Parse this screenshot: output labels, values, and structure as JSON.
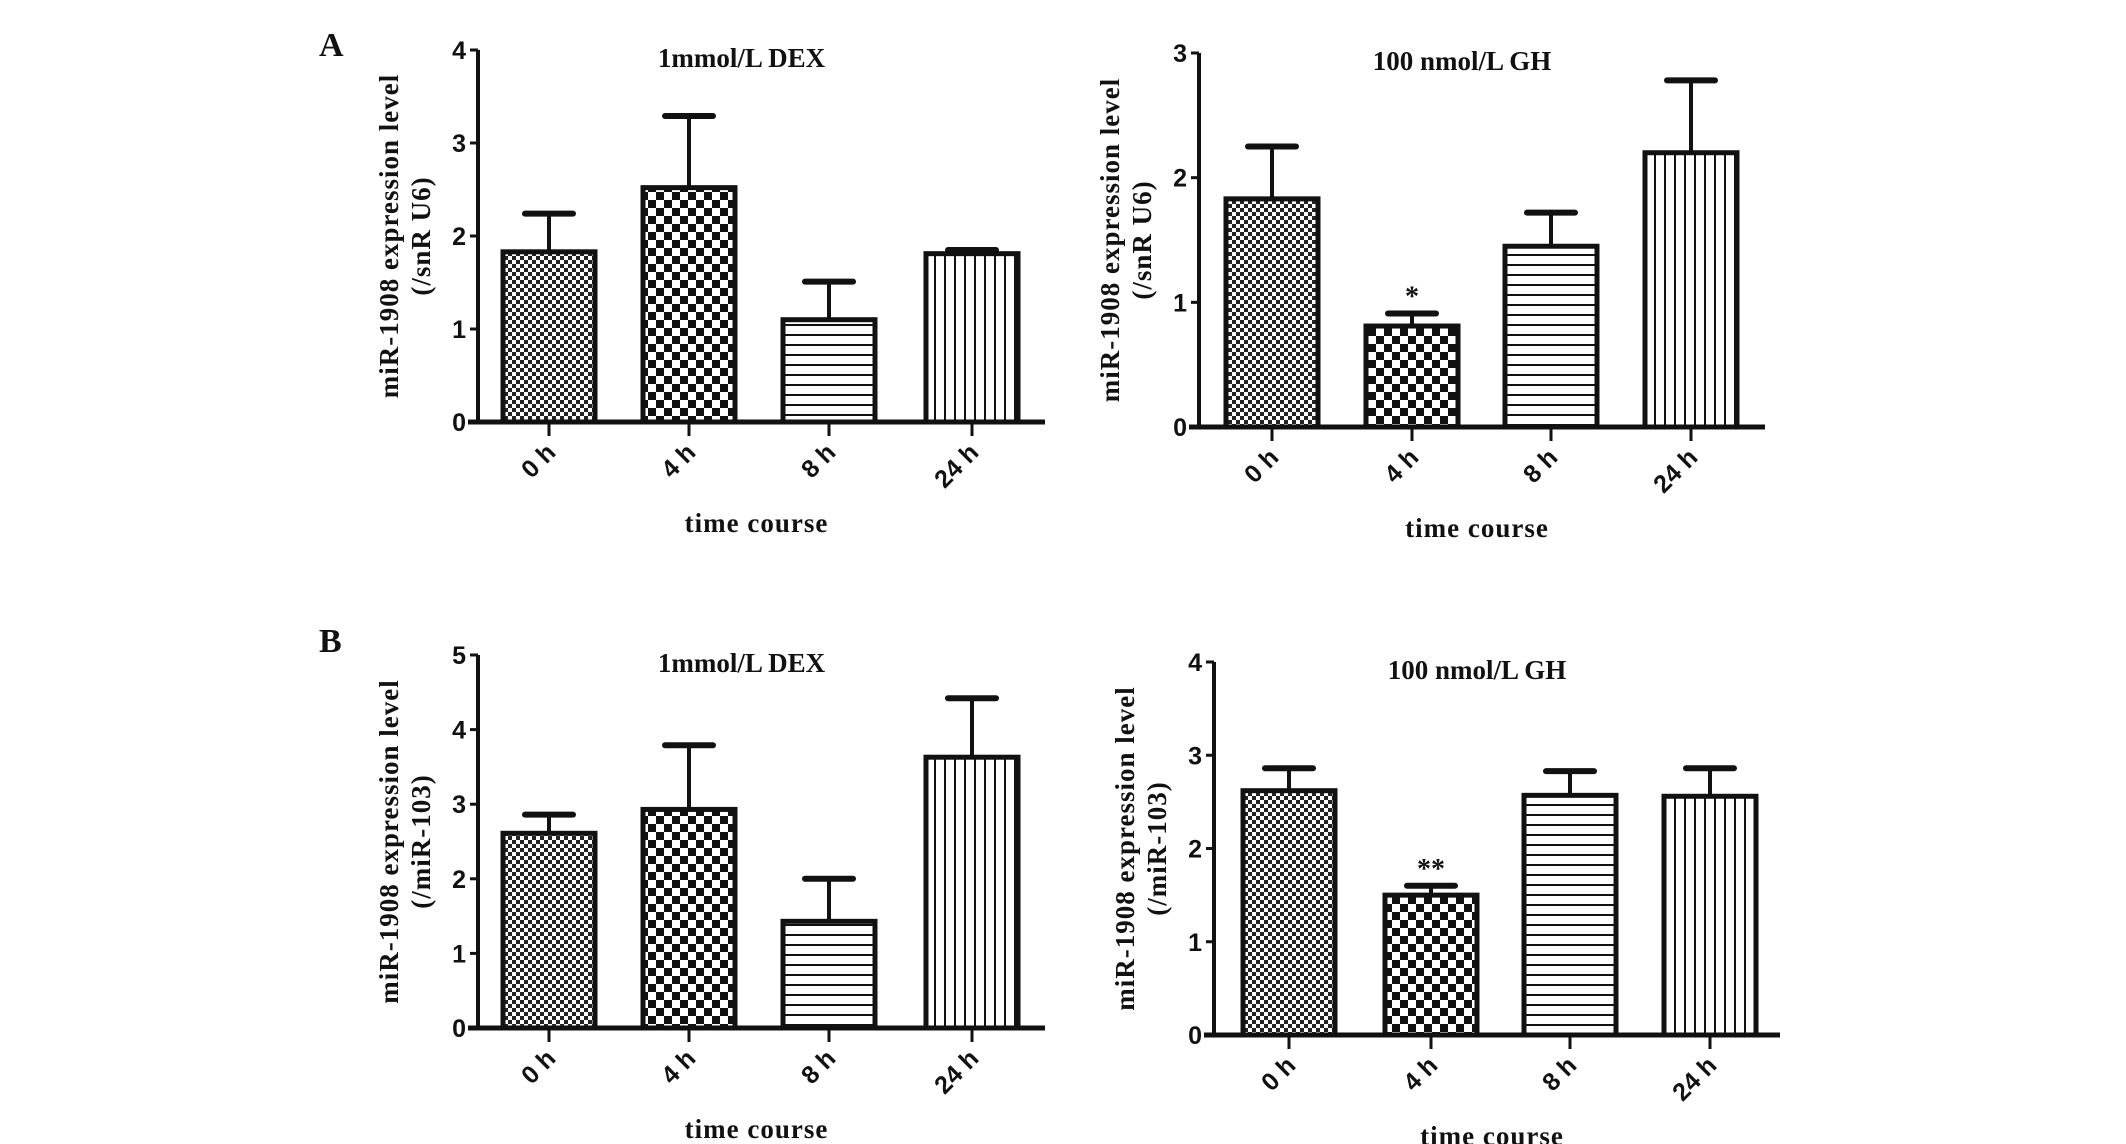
{
  "chart_data": [
    {
      "panel": "A",
      "type": "bar",
      "title": "1mmol/L DEX",
      "xlabel": "time course",
      "ylabel": [
        "miR-1908 expression level",
        "(/snR U6)"
      ],
      "ylim": [
        0,
        4
      ],
      "yticks": [
        "0",
        "1",
        "2",
        "3",
        "4"
      ],
      "categories": [
        "0 h",
        "4 h",
        "8 h",
        "24 h"
      ],
      "values": [
        1.83,
        2.52,
        1.1,
        1.81
      ],
      "error_upper": [
        2.24,
        3.29,
        1.51,
        1.85
      ],
      "patterns": [
        "fine-checker",
        "coarse-checker",
        "horizontal-lines",
        "vertical-lines"
      ],
      "annotations": [
        "",
        "",
        "",
        ""
      ]
    },
    {
      "panel": "",
      "type": "bar",
      "title": "100 nmol/L GH",
      "xlabel": "time course",
      "ylabel": [
        "miR-1908 expression level",
        "(/snR U6)"
      ],
      "ylim": [
        0,
        3
      ],
      "yticks": [
        "0",
        "1",
        "2",
        "3"
      ],
      "categories": [
        "0 h",
        "4 h",
        "8 h",
        "24 h"
      ],
      "values": [
        1.83,
        0.81,
        1.45,
        2.2
      ],
      "error_upper": [
        2.25,
        0.91,
        1.72,
        2.78
      ],
      "patterns": [
        "fine-checker",
        "coarse-checker",
        "horizontal-lines",
        "vertical-lines"
      ],
      "annotations": [
        "",
        "*",
        "",
        ""
      ]
    },
    {
      "panel": "B",
      "type": "bar",
      "title": "1mmol/L  DEX",
      "xlabel": "time course",
      "ylabel": [
        "miR-1908 expression level",
        "(/miR-103)"
      ],
      "ylim": [
        0,
        5
      ],
      "yticks": [
        "0",
        "1",
        "2",
        "3",
        "4",
        "5"
      ],
      "categories": [
        "0 h",
        "4 h",
        "8 h",
        "24 h"
      ],
      "values": [
        2.61,
        2.93,
        1.43,
        3.63
      ],
      "error_upper": [
        2.86,
        3.79,
        2.0,
        4.42
      ],
      "patterns": [
        "fine-checker",
        "coarse-checker",
        "horizontal-lines",
        "vertical-lines"
      ],
      "annotations": [
        "",
        "",
        "",
        ""
      ]
    },
    {
      "panel": "",
      "type": "bar",
      "title": "100 nmol/L GH",
      "xlabel": "time course",
      "ylabel": [
        "miR-1908 expression level",
        "(/miR-103)"
      ],
      "ylim": [
        0,
        4
      ],
      "yticks": [
        "0",
        "1",
        "2",
        "3",
        "4"
      ],
      "categories": [
        "0 h",
        "4 h",
        "8 h",
        "24 h"
      ],
      "values": [
        2.62,
        1.5,
        2.57,
        2.56
      ],
      "error_upper": [
        2.86,
        1.6,
        2.83,
        2.86
      ],
      "patterns": [
        "fine-checker",
        "coarse-checker",
        "horizontal-lines",
        "vertical-lines"
      ],
      "annotations": [
        "",
        "**",
        "",
        ""
      ]
    }
  ]
}
